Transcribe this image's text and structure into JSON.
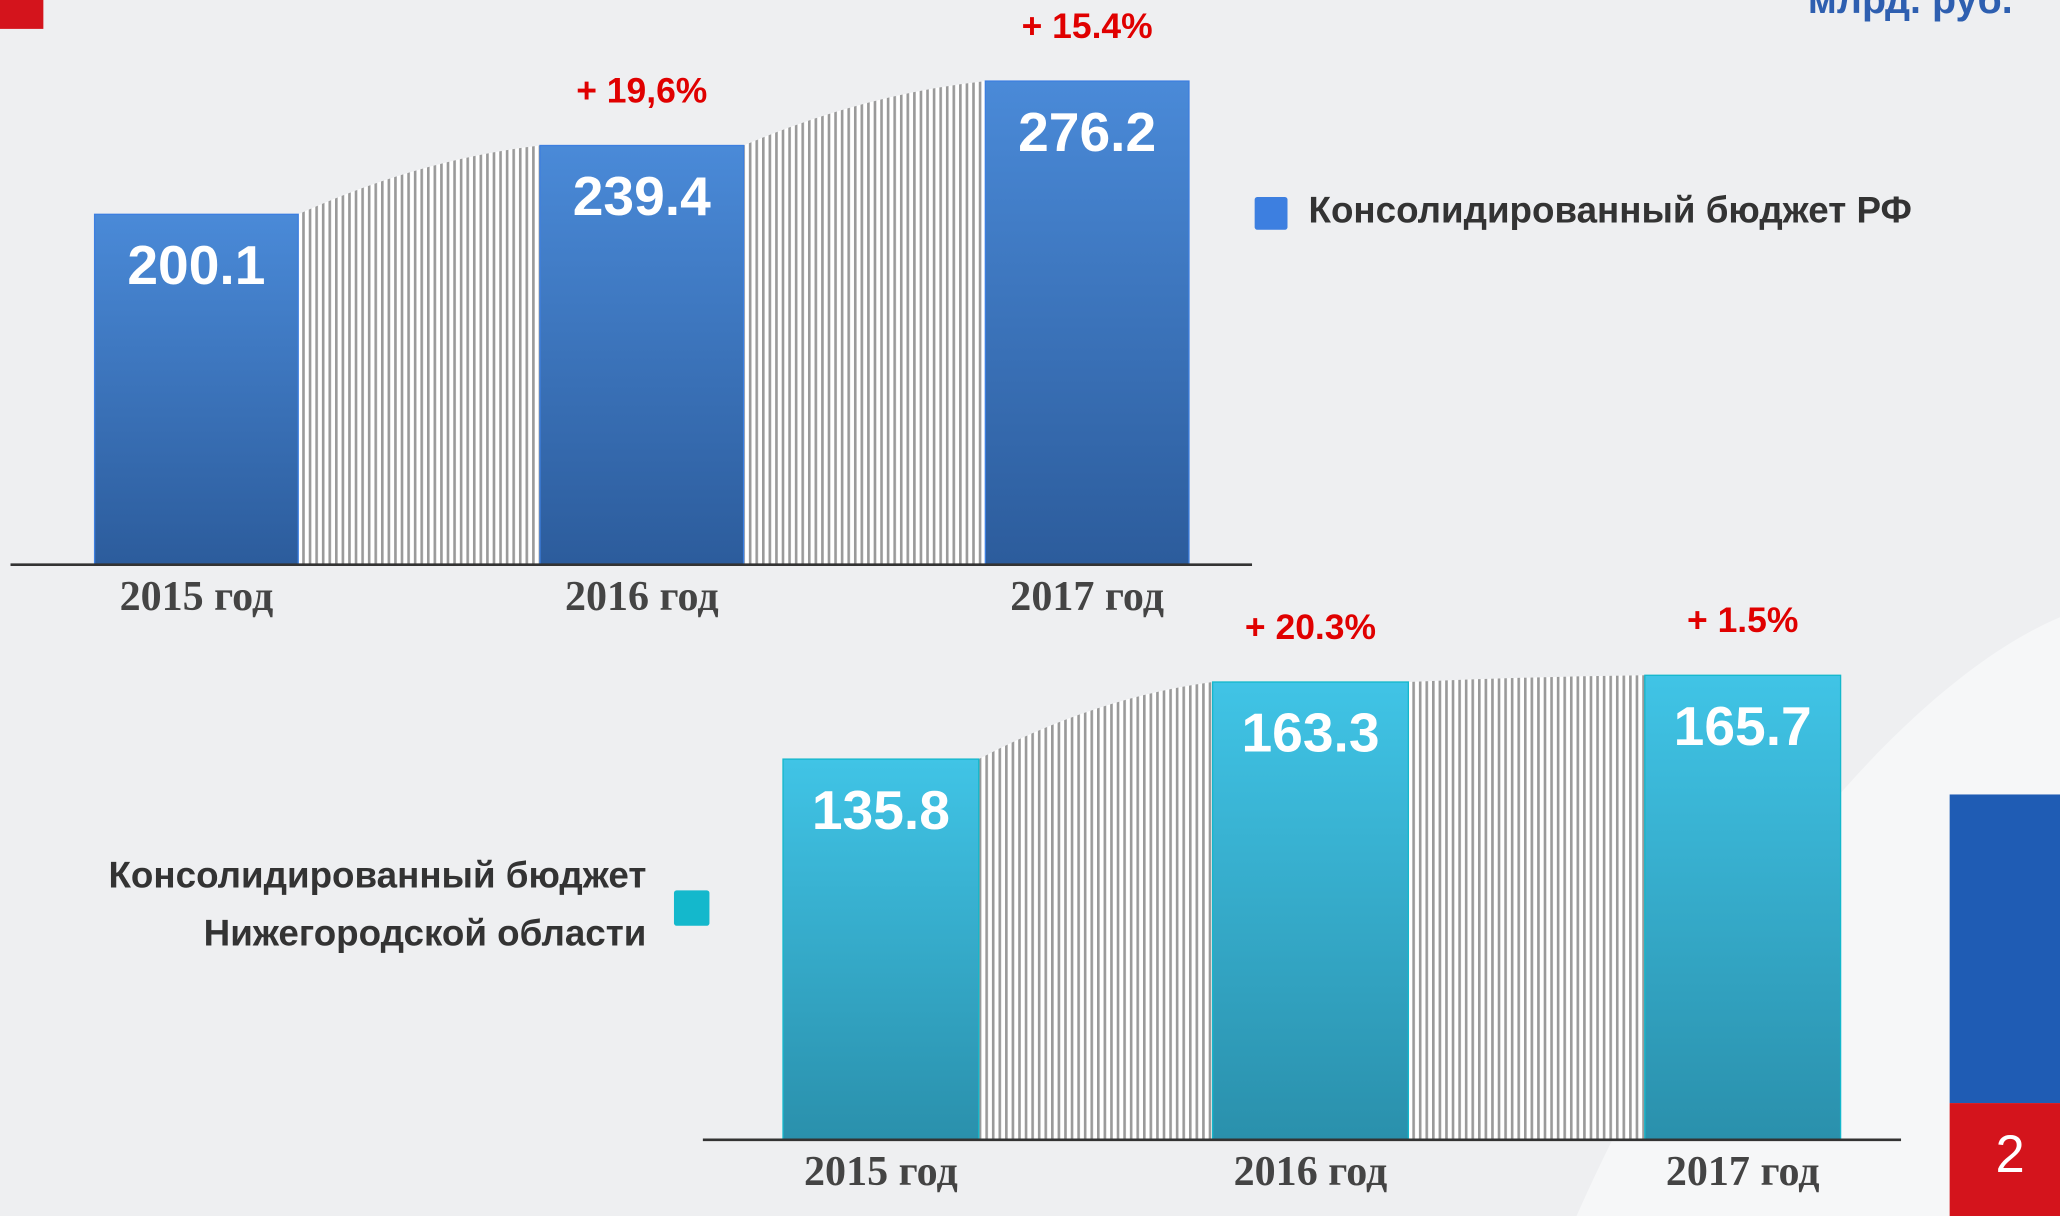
{
  "header": {
    "unit": "млрд. руб."
  },
  "page_number": "2",
  "chart_data": [
    {
      "type": "bar",
      "categories": [
        "2015 год",
        "2016 год",
        "2017 год"
      ],
      "series": [
        {
          "name": "Консолидированный бюджет РФ",
          "color": "#3d7fe0",
          "values": [
            200.1,
            239.4,
            276.2
          ]
        }
      ],
      "annotations": [
        "+ 19,6%",
        "+ 15.4%"
      ],
      "ylim": [
        0,
        300
      ]
    },
    {
      "type": "bar",
      "categories": [
        "2015 год",
        "2016 год",
        "2017 год"
      ],
      "series": [
        {
          "name": "Консолидированный бюджет Нижегородской области",
          "color": "#14b8cc",
          "values": [
            135.8,
            163.3,
            165.7
          ]
        }
      ],
      "annotations": [
        "+ 20.3%",
        "+ 1.5%"
      ],
      "ylim": [
        0,
        200
      ]
    }
  ]
}
